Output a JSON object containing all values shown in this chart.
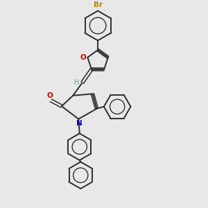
{
  "background_color": "#e8e8e8",
  "bond_color": "#2c2c2c",
  "atom_colors": {
    "Br": "#b8860b",
    "O_furan": "#cc0000",
    "O_carbonyl": "#cc0000",
    "N": "#0000cc",
    "H": "#5f9ea0",
    "C": "#2c2c2c"
  },
  "fig_w": 3.0,
  "fig_h": 3.0,
  "dpi": 100,
  "xlim": [
    0,
    10
  ],
  "ylim": [
    0,
    10
  ]
}
